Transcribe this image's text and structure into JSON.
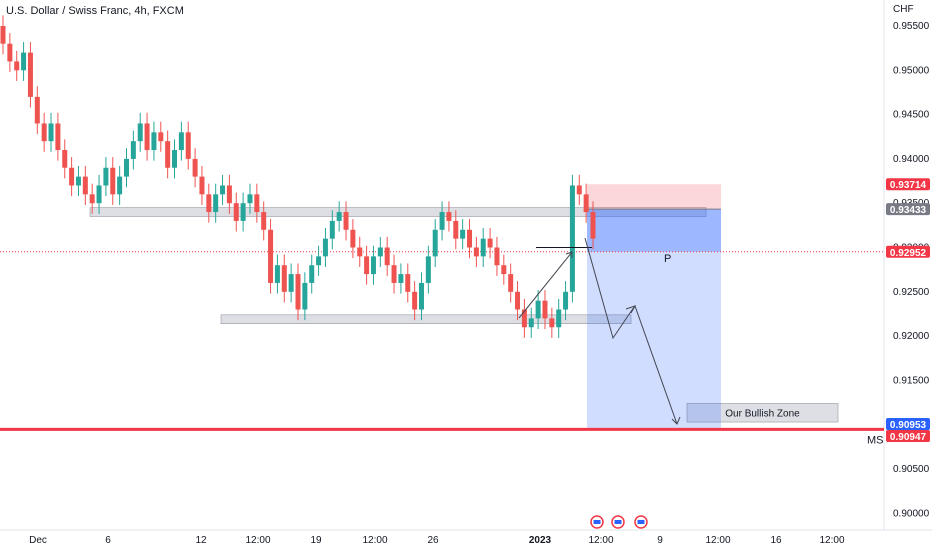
{
  "header": {
    "title": "U.S. Dollar / Swiss Franc, 4h, FXCM",
    "currency": "CHF"
  },
  "chart_data": {
    "type": "candlestick",
    "title": "U.S. Dollar / Swiss Franc, 4h, FXCM",
    "ylabel": "CHF",
    "ylim": [
      0.8973,
      0.9587
    ],
    "y_ticks": [
      "0.95500",
      "0.95000",
      "0.94500",
      "0.94000",
      "0.93500",
      "0.93000",
      "0.92500",
      "0.92000",
      "0.91500",
      "0.91000",
      "0.90500",
      "0.90000"
    ],
    "x_ticks": [
      "Dec",
      "6",
      "12",
      "12:00",
      "19",
      "12:00",
      "26",
      "2023",
      "12:00",
      "9",
      "12:00",
      "16",
      "12:00"
    ],
    "colors": {
      "up": "#26a69a",
      "down": "#ef5350",
      "red_line": "#f23645",
      "blue_zone": "#2962ff",
      "gray_zone": "#d1d4dc"
    },
    "candles_sketch": [
      [
        0.955,
        0.953
      ],
      [
        0.953,
        0.951
      ],
      [
        0.951,
        0.95
      ],
      [
        0.95,
        0.952
      ],
      [
        0.952,
        0.947
      ],
      [
        0.947,
        0.944
      ],
      [
        0.944,
        0.942
      ],
      [
        0.942,
        0.944
      ],
      [
        0.944,
        0.941
      ],
      [
        0.941,
        0.939
      ],
      [
        0.939,
        0.937
      ],
      [
        0.937,
        0.938
      ],
      [
        0.938,
        0.936
      ],
      [
        0.936,
        0.935
      ],
      [
        0.935,
        0.937
      ],
      [
        0.937,
        0.939
      ],
      [
        0.939,
        0.936
      ],
      [
        0.936,
        0.938
      ],
      [
        0.938,
        0.94
      ],
      [
        0.94,
        0.942
      ],
      [
        0.942,
        0.944
      ],
      [
        0.944,
        0.941
      ],
      [
        0.941,
        0.943
      ],
      [
        0.943,
        0.942
      ],
      [
        0.942,
        0.939
      ],
      [
        0.939,
        0.941
      ],
      [
        0.941,
        0.943
      ],
      [
        0.943,
        0.94
      ],
      [
        0.94,
        0.938
      ],
      [
        0.938,
        0.936
      ],
      [
        0.936,
        0.934
      ],
      [
        0.934,
        0.936
      ],
      [
        0.936,
        0.937
      ],
      [
        0.937,
        0.935
      ],
      [
        0.935,
        0.933
      ],
      [
        0.933,
        0.935
      ],
      [
        0.935,
        0.936
      ],
      [
        0.936,
        0.934
      ],
      [
        0.934,
        0.932
      ],
      [
        0.932,
        0.926
      ],
      [
        0.926,
        0.928
      ],
      [
        0.928,
        0.925
      ],
      [
        0.925,
        0.927
      ],
      [
        0.927,
        0.923
      ],
      [
        0.923,
        0.926
      ],
      [
        0.926,
        0.928
      ],
      [
        0.928,
        0.929
      ],
      [
        0.929,
        0.931
      ],
      [
        0.931,
        0.933
      ],
      [
        0.933,
        0.934
      ],
      [
        0.934,
        0.932
      ],
      [
        0.932,
        0.93
      ],
      [
        0.93,
        0.929
      ],
      [
        0.929,
        0.927
      ],
      [
        0.927,
        0.929
      ],
      [
        0.929,
        0.93
      ],
      [
        0.93,
        0.928
      ],
      [
        0.928,
        0.926
      ],
      [
        0.926,
        0.927
      ],
      [
        0.927,
        0.925
      ],
      [
        0.925,
        0.923
      ],
      [
        0.923,
        0.926
      ],
      [
        0.926,
        0.929
      ],
      [
        0.929,
        0.932
      ],
      [
        0.932,
        0.934
      ],
      [
        0.934,
        0.933
      ],
      [
        0.933,
        0.931
      ],
      [
        0.931,
        0.932
      ],
      [
        0.932,
        0.93
      ],
      [
        0.93,
        0.929
      ],
      [
        0.929,
        0.931
      ],
      [
        0.931,
        0.93
      ],
      [
        0.93,
        0.928
      ],
      [
        0.928,
        0.927
      ],
      [
        0.927,
        0.925
      ],
      [
        0.925,
        0.923
      ],
      [
        0.923,
        0.921
      ],
      [
        0.921,
        0.922
      ],
      [
        0.922,
        0.924
      ],
      [
        0.924,
        0.922
      ],
      [
        0.922,
        0.921
      ],
      [
        0.921,
        0.923
      ],
      [
        0.923,
        0.925
      ],
      [
        0.925,
        0.937
      ],
      [
        0.937,
        0.936
      ],
      [
        0.936,
        0.934
      ],
      [
        0.934,
        0.931
      ]
    ],
    "zones": [
      {
        "label": "",
        "from": 0.9335,
        "to": 0.9345
      },
      {
        "label": "",
        "from": 0.9214,
        "to": 0.9224
      },
      {
        "label": "Our Bullish Zone",
        "from": 0.9103,
        "to": 0.9124
      }
    ],
    "position": {
      "target_price": 0.93714,
      "entry_price": 0.93433,
      "current_price": 0.92952,
      "stop_price": 0.90953
    },
    "annotations": {
      "entry_marker": "P",
      "ms_label": "MS",
      "ms_price": 0.90947,
      "zone_label": "Our Bullish Zone"
    },
    "price_labels": [
      {
        "text": "0.93714",
        "price": 0.93714,
        "color": "#f23645",
        "fg": "#ffffff"
      },
      {
        "text": "0.93433",
        "price": 0.93433,
        "color": "#787b86",
        "fg": "#ffffff"
      },
      {
        "text": "0.92952",
        "price": 0.92952,
        "color": "#f23645",
        "fg": "#ffffff"
      },
      {
        "text": "0.90953",
        "price": 0.90953,
        "color": "#2962ff",
        "fg": "#ffffff"
      },
      {
        "text": "0.90947",
        "price": 0.90947,
        "color": "#f23645",
        "fg": "#ffffff"
      }
    ]
  }
}
